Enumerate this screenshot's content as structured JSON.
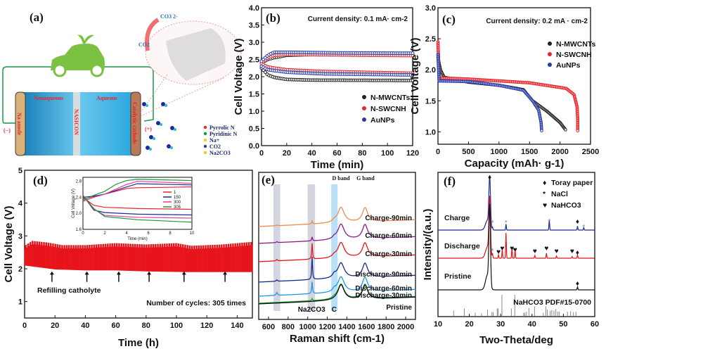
{
  "panel_a": {
    "label": "(a)",
    "nonaqueous": "Nonaqueous",
    "aqueous": "Aqueous",
    "nasicon": "NASICON",
    "anode": "Na anode",
    "cathode": "Catalytic cathode",
    "minus": "(−)",
    "plus": "(+)",
    "co2": "CO2",
    "co3": "CO3 2-",
    "legend": [
      "Pyrrolic N",
      "Pyridinic N",
      "Na+",
      "CO2",
      "Na2CO3"
    ],
    "colors": {
      "wire": "#1a9a4a",
      "car": "#7cc242",
      "electrolyte": "#2aa7e0"
    }
  },
  "chart_data": [
    {
      "id": "b",
      "panel_label": "(b)",
      "type": "scatter",
      "annotation": "Current density: 0.1 mA· cm-2",
      "xlabel": "Time (min)",
      "ylabel": "Cell Voltage (V)",
      "xlim": [
        0,
        120
      ],
      "ylim": [
        0,
        4
      ],
      "xticks": [
        0,
        20,
        40,
        60,
        80,
        100,
        120
      ],
      "yticks": [
        "0.0",
        "0.5",
        "1.0",
        "1.5",
        "2.0",
        "2.5",
        "3.0",
        "3.5",
        "4.0"
      ],
      "legend_placement": "center-right",
      "series": [
        {
          "name": "N-MWCNTs",
          "color": "#222222",
          "charge": [
            [
              0,
              2.4
            ],
            [
              5,
              2.5
            ],
            [
              10,
              2.55
            ],
            [
              20,
              2.62
            ],
            [
              40,
              2.64
            ],
            [
              120,
              2.64
            ]
          ],
          "discharge": [
            [
              0,
              2.25
            ],
            [
              5,
              2.05
            ],
            [
              10,
              1.98
            ],
            [
              20,
              1.92
            ],
            [
              40,
              1.9
            ],
            [
              120,
              1.89
            ]
          ]
        },
        {
          "name": "N-SWCNH",
          "color": "#e8262b",
          "charge": [
            [
              0,
              2.4
            ],
            [
              5,
              2.55
            ],
            [
              10,
              2.62
            ],
            [
              20,
              2.64
            ],
            [
              60,
              2.63
            ],
            [
              120,
              2.61
            ]
          ],
          "discharge": [
            [
              0,
              2.38
            ],
            [
              5,
              2.28
            ],
            [
              20,
              2.2
            ],
            [
              50,
              2.15
            ],
            [
              120,
              2.1
            ]
          ]
        },
        {
          "name": "AuNPs",
          "color": "#2a3aa8",
          "charge": [
            [
              0,
              2.45
            ],
            [
              5,
              2.62
            ],
            [
              10,
              2.71
            ],
            [
              20,
              2.71
            ],
            [
              60,
              2.69
            ],
            [
              120,
              2.68
            ]
          ],
          "discharge": [
            [
              0,
              2.3
            ],
            [
              5,
              2.2
            ],
            [
              20,
              2.13
            ],
            [
              50,
              2.08
            ],
            [
              120,
              2.05
            ]
          ]
        }
      ]
    },
    {
      "id": "c",
      "panel_label": "(c)",
      "type": "scatter",
      "annotation": "Current density: 0.2 mA · cm-2",
      "xlabel": "Capacity (mAh· g-1)",
      "ylabel": "Cell Voltage (V)",
      "xlim": [
        0,
        2500
      ],
      "ylim": [
        0.8,
        3.0
      ],
      "xticks": [
        0,
        500,
        1000,
        1500,
        2000,
        2500
      ],
      "yticks": [
        "1.0",
        "1.5",
        "2.0",
        "2.5",
        "3.0"
      ],
      "legend_placement": "top-right",
      "series": [
        {
          "name": "N-MWCNTs",
          "color": "#222222",
          "points": [
            [
              0,
              2.2
            ],
            [
              40,
              2.0
            ],
            [
              100,
              1.88
            ],
            [
              500,
              1.8
            ],
            [
              1000,
              1.75
            ],
            [
              1400,
              1.68
            ],
            [
              1550,
              1.5
            ],
            [
              1800,
              1.32
            ],
            [
              2000,
              1.15
            ],
            [
              2100,
              1.02
            ]
          ]
        },
        {
          "name": "N-SWCNH",
          "color": "#e8262b",
          "points": [
            [
              0,
              2.45
            ],
            [
              20,
              1.87
            ],
            [
              500,
              1.85
            ],
            [
              1500,
              1.79
            ],
            [
              2100,
              1.7
            ],
            [
              2230,
              1.6
            ],
            [
              2280,
              1.4
            ],
            [
              2290,
              1.2
            ],
            [
              2290,
              1.0
            ]
          ]
        },
        {
          "name": "AuNPs",
          "color": "#2a3aa8",
          "points": [
            [
              0,
              2.25
            ],
            [
              20,
              1.82
            ],
            [
              500,
              1.81
            ],
            [
              1000,
              1.75
            ],
            [
              1400,
              1.67
            ],
            [
              1550,
              1.5
            ],
            [
              1650,
              1.35
            ],
            [
              1690,
              1.15
            ],
            [
              1700,
              1.0
            ]
          ]
        }
      ]
    },
    {
      "id": "d",
      "panel_label": "(d)",
      "type": "line",
      "xlabel": "Time (h)",
      "ylabel": "Cell Voltage (V)",
      "xlim": [
        0,
        150
      ],
      "ylim": [
        0.5,
        5
      ],
      "xticks": [
        0,
        20,
        40,
        60,
        80,
        100,
        120,
        140
      ],
      "yticks": [
        1,
        2,
        3,
        4,
        5
      ],
      "color": "#e8141c",
      "upper_envelope": [
        [
          0,
          2.7
        ],
        [
          5,
          2.85
        ],
        [
          15,
          2.8
        ],
        [
          25,
          2.72
        ],
        [
          40,
          2.72
        ],
        [
          60,
          2.78
        ],
        [
          80,
          2.74
        ],
        [
          100,
          2.78
        ],
        [
          110,
          2.7
        ],
        [
          130,
          2.74
        ],
        [
          150,
          2.82
        ]
      ],
      "lower_envelope": [
        [
          0,
          2.1
        ],
        [
          20,
          1.98
        ],
        [
          40,
          1.95
        ],
        [
          60,
          1.95
        ],
        [
          80,
          1.92
        ],
        [
          105,
          1.9
        ],
        [
          130,
          1.9
        ],
        [
          150,
          1.9
        ]
      ],
      "arrows_at": [
        18,
        41,
        62,
        82,
        105,
        132
      ],
      "arrow_label": "Refilling catholyte",
      "annotation": "Number of cycles: 305 times",
      "inset": {
        "xlabel": "Time (min)",
        "ylabel": "Cell Voltage (V)",
        "xlim": [
          0,
          10
        ],
        "ylim": [
          1.6,
          2.9
        ],
        "xticks": [
          0,
          2,
          4,
          6,
          8,
          10
        ],
        "yticks": [
          "1.6",
          "2.0",
          "2.4",
          "2.8"
        ],
        "series": [
          {
            "name": "1",
            "color": "#e8262b",
            "charge": [
              [
                0,
                2.35
              ],
              [
                1,
                2.42
              ],
              [
                2,
                2.48
              ],
              [
                4,
                2.62
              ],
              [
                5,
                2.64
              ],
              [
                10,
                2.66
              ]
            ],
            "discharge": [
              [
                0,
                2.4
              ],
              [
                1,
                2.2
              ],
              [
                2,
                2.15
              ],
              [
                5,
                2.12
              ],
              [
                10,
                2.1
              ]
            ]
          },
          {
            "name": "150",
            "color": "#1c2a9c",
            "charge": [
              [
                0,
                2.4
              ],
              [
                1,
                2.43
              ],
              [
                2,
                2.48
              ],
              [
                4,
                2.66
              ],
              [
                5,
                2.74
              ],
              [
                10,
                2.71
              ]
            ],
            "discharge": [
              [
                0,
                2.45
              ],
              [
                1,
                2.08
              ],
              [
                2,
                2.02
              ],
              [
                5,
                1.98
              ],
              [
                10,
                1.96
              ]
            ]
          },
          {
            "name": "300",
            "color": "#e83a9a",
            "charge": [
              [
                0,
                2.3
              ],
              [
                1,
                2.4
              ],
              [
                2,
                2.48
              ],
              [
                4,
                2.72
              ],
              [
                5,
                2.8
              ],
              [
                10,
                2.75
              ]
            ],
            "discharge": [
              [
                0,
                2.45
              ],
              [
                1,
                2.1
              ],
              [
                2,
                1.95
              ],
              [
                5,
                1.9
              ],
              [
                10,
                1.88
              ]
            ]
          },
          {
            "name": "305",
            "color": "#1a9a3a",
            "charge": [
              [
                0,
                2.32
              ],
              [
                1,
                2.45
              ],
              [
                2,
                2.55
              ],
              [
                3,
                2.72
              ],
              [
                4,
                2.82
              ],
              [
                5,
                2.85
              ],
              [
                10,
                2.82
              ]
            ],
            "discharge": [
              [
                0,
                2.45
              ],
              [
                1,
                2.12
              ],
              [
                2,
                1.92
              ],
              [
                5,
                1.84
              ],
              [
                10,
                1.78
              ]
            ]
          }
        ]
      }
    },
    {
      "id": "e",
      "panel_label": "(e)",
      "type": "line",
      "xlabel": "Raman shift (cm-1)",
      "ylabel": "",
      "xlim": [
        500,
        2100
      ],
      "xticks": [
        600,
        800,
        1000,
        1200,
        1400,
        1600,
        1800,
        2000
      ],
      "band_labels": [
        "D band",
        "G band"
      ],
      "highlight_labels": [
        "Na2CO3",
        "C"
      ],
      "series": [
        {
          "name": "Charge-90min",
          "color": "#f08a4a",
          "na2co3": 0.3,
          "s700": 0.05,
          "shoulder": 0.3
        },
        {
          "name": "Charge-60min",
          "color": "#8a1a8a",
          "na2co3": 0.4,
          "s700": 0.06,
          "shoulder": 0.3
        },
        {
          "name": "Charge-30min",
          "color": "#e8141c",
          "na2co3": 1.6,
          "s700": 0.1,
          "shoulder": 0.35
        },
        {
          "name": "Discharge-90min",
          "color": "#1a2a8a",
          "na2co3": 2.3,
          "s700": 0.1,
          "shoulder": 0.55
        },
        {
          "name": "Discharge-60min",
          "color": "#1a9ae8",
          "na2co3": 1.2,
          "s700": 0.2,
          "shoulder": 0.45
        },
        {
          "name": "Discharge-30min",
          "color": "#1a9a3a",
          "na2co3": 0.2,
          "s700": 0.0,
          "shoulder": 0.2
        },
        {
          "name": "Pristine",
          "color": "#111111",
          "na2co3": 0.0,
          "s700": 0.0,
          "shoulder": 0.0
        }
      ]
    },
    {
      "id": "f",
      "panel_label": "(f)",
      "type": "line",
      "xlabel": "Two-Theta/deg",
      "ylabel": "Intensity/(a.u.)",
      "xlim": [
        10,
        60
      ],
      "xticks": [
        10,
        20,
        30,
        40,
        50,
        60
      ],
      "legend": [
        "Toray paper",
        "NaCl",
        "NaHCO3"
      ],
      "legend_placement": "top-right",
      "reference_label": "NaHCO3 PDF#15-0700",
      "series": [
        {
          "name": "Charge",
          "color": "#1c2a9c",
          "peaks": [
            [
              26.5,
              1.0
            ],
            [
              27.4,
              0.05
            ],
            [
              31.7,
              0.12
            ],
            [
              45.5,
              0.2
            ],
            [
              54.5,
              0.08
            ],
            [
              56.5,
              0.05
            ]
          ]
        },
        {
          "name": "Discharge",
          "color": "#e8141c",
          "peaks": [
            [
              26.5,
              1.0
            ],
            [
              27.4,
              0.08
            ],
            [
              29.3,
              0.06
            ],
            [
              30.5,
              0.15
            ],
            [
              31.7,
              0.45
            ],
            [
              33.6,
              0.18
            ],
            [
              34.6,
              0.14
            ],
            [
              40.9,
              0.05
            ],
            [
              44.6,
              0.09
            ],
            [
              47.8,
              0.04
            ],
            [
              52.8,
              0.03
            ],
            [
              54.5,
              0.06
            ]
          ]
        },
        {
          "name": "Pristine",
          "color": "#111111",
          "peaks": [
            [
              26.5,
              1.3
            ],
            [
              54.5,
              0.05
            ]
          ]
        }
      ],
      "reference_sticks": [
        [
          15,
          0.25
        ],
        [
          18.4,
          0.35
        ],
        [
          21.9,
          0.15
        ],
        [
          23.9,
          0.12
        ],
        [
          25.8,
          0.3
        ],
        [
          27.2,
          0.18
        ],
        [
          27.6,
          0.18
        ],
        [
          28.9,
          0.35
        ],
        [
          29.2,
          0.35
        ],
        [
          30.4,
          1.0
        ],
        [
          33.4,
          0.35
        ],
        [
          34.5,
          1.0
        ],
        [
          37.3,
          0.15
        ],
        [
          37.7,
          0.15
        ],
        [
          38.2,
          0.2
        ],
        [
          39.0,
          0.38
        ],
        [
          40.8,
          0.45
        ],
        [
          43.6,
          0.15
        ],
        [
          44.4,
          0.45
        ],
        [
          44.9,
          0.3
        ],
        [
          45.8,
          0.25
        ],
        [
          46.3,
          0.28
        ],
        [
          47.0,
          0.25
        ],
        [
          47.6,
          0.32
        ],
        [
          48.2,
          0.2
        ],
        [
          48.7,
          0.2
        ],
        [
          51.3,
          0.2
        ],
        [
          52.3,
          0.22
        ],
        [
          53.2,
          0.18
        ],
        [
          54.0,
          0.2
        ]
      ]
    }
  ]
}
